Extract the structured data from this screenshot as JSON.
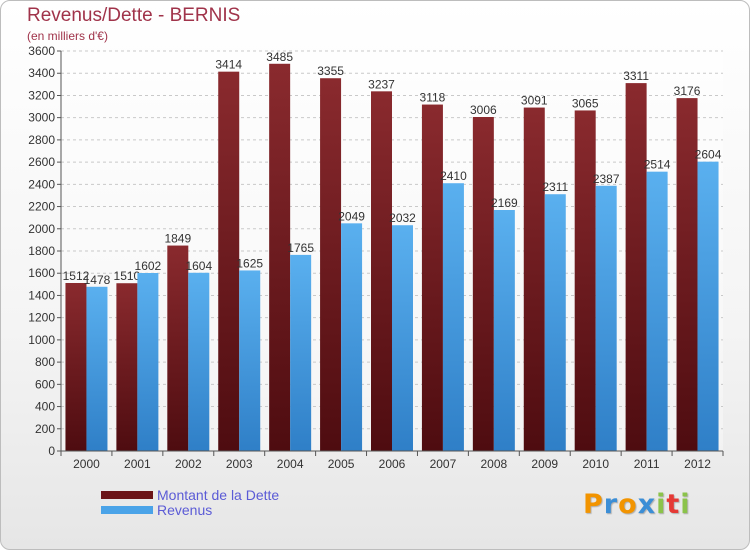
{
  "header": {
    "title": "Revenus/Dette - BERNIS",
    "subtitle": "(en milliers d'€)"
  },
  "logo": {
    "letters": [
      "P",
      "r",
      "o",
      "x",
      "i",
      "t",
      "i"
    ],
    "colors": [
      "#f29400",
      "#3b8ed6",
      "#f29400",
      "#3b8ed6",
      "#8bc34a",
      "#e53935",
      "#8bc34a"
    ]
  },
  "chart_data": {
    "type": "bar",
    "title": "Revenus/Dette - BERNIS",
    "subtitle": "(en milliers d'€)",
    "categories": [
      "2000",
      "2001",
      "2002",
      "2003",
      "2004",
      "2005",
      "2006",
      "2007",
      "2008",
      "2009",
      "2010",
      "2011",
      "2012"
    ],
    "series": [
      {
        "name": "Montant de la Dette",
        "color": "#7a1f23",
        "values": [
          1512,
          1510,
          1849,
          3414,
          3485,
          3355,
          3237,
          3118,
          3006,
          3091,
          3065,
          3311,
          3176
        ]
      },
      {
        "name": "Revenus",
        "color": "#4aa3e8",
        "values": [
          1478,
          1602,
          1604,
          1625,
          1765,
          2049,
          2032,
          2410,
          2169,
          2311,
          2387,
          2514,
          2604
        ]
      }
    ],
    "yticks": [
      0,
      200,
      400,
      600,
      800,
      1000,
      1200,
      1400,
      1600,
      1800,
      2000,
      2200,
      2400,
      2600,
      2800,
      3000,
      3200,
      3400,
      3600
    ],
    "ylim": [
      0,
      3600
    ],
    "grid": true,
    "legend": "bottom-left"
  }
}
